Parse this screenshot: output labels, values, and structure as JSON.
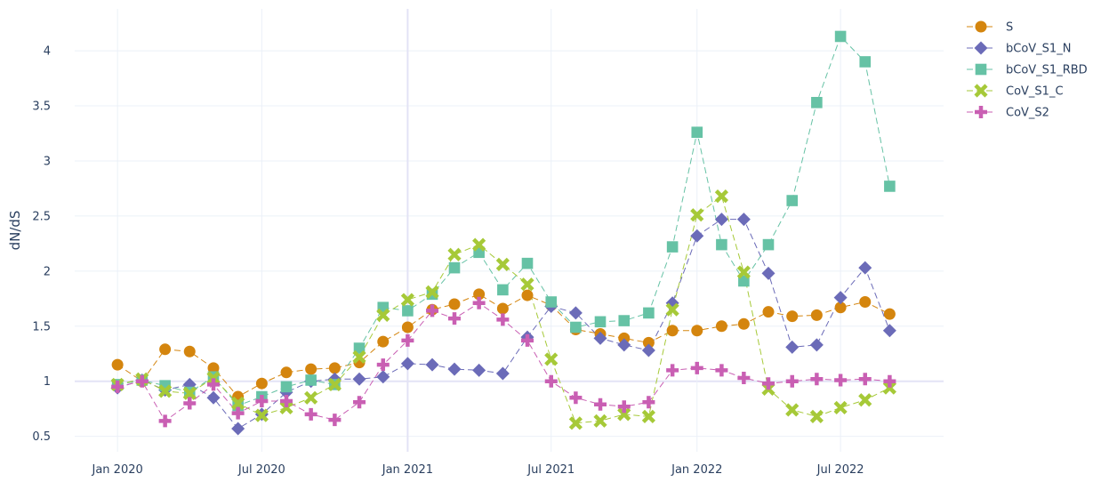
{
  "chart_data": {
    "type": "line",
    "title": "",
    "xlabel": "",
    "ylabel": "dN/dS",
    "ylim": [
      0.36,
      4.38
    ],
    "xlim": [
      "2019-11-08",
      "2022-11-08"
    ],
    "grid": true,
    "legend_position": "top-right",
    "x_ticks": [
      {
        "date": "2020-01-01",
        "label": "Jan 2020"
      },
      {
        "date": "2020-07-01",
        "label": "Jul 2020"
      },
      {
        "date": "2021-01-01",
        "label": "Jan 2021"
      },
      {
        "date": "2021-07-01",
        "label": "Jul 2021"
      },
      {
        "date": "2022-01-01",
        "label": "Jan 2022"
      },
      {
        "date": "2022-07-01",
        "label": "Jul 2022"
      }
    ],
    "y_ticks": [
      {
        "value": 0.5,
        "label": "0.5"
      },
      {
        "value": 1,
        "label": "1"
      },
      {
        "value": 1.5,
        "label": "1.5"
      },
      {
        "value": 2,
        "label": "2"
      },
      {
        "value": 2.5,
        "label": "2.5"
      },
      {
        "value": 3,
        "label": "3"
      },
      {
        "value": 3.5,
        "label": "3.5"
      },
      {
        "value": 4,
        "label": "4"
      }
    ],
    "x": [
      "2020-01-01",
      "2020-02-01",
      "2020-03-01",
      "2020-04-01",
      "2020-05-01",
      "2020-06-01",
      "2020-07-01",
      "2020-08-01",
      "2020-09-01",
      "2020-10-01",
      "2020-11-01",
      "2020-12-01",
      "2021-01-01",
      "2021-02-01",
      "2021-03-01",
      "2021-04-01",
      "2021-05-01",
      "2021-06-01",
      "2021-07-01",
      "2021-08-01",
      "2021-09-01",
      "2021-10-01",
      "2021-11-01",
      "2021-12-01",
      "2022-01-01",
      "2022-02-01",
      "2022-03-01",
      "2022-04-01",
      "2022-05-01",
      "2022-06-01",
      "2022-07-01",
      "2022-08-01",
      "2022-09-01"
    ],
    "series": [
      {
        "name": "S",
        "color": "#d4850e",
        "symbol": "circle",
        "values": [
          1.15,
          1.0,
          1.29,
          1.27,
          1.12,
          0.86,
          0.98,
          1.08,
          1.11,
          1.12,
          1.17,
          1.36,
          1.49,
          1.65,
          1.7,
          1.79,
          1.66,
          1.78,
          1.69,
          1.47,
          1.43,
          1.39,
          1.35,
          1.46,
          1.46,
          1.5,
          1.52,
          1.63,
          1.59,
          1.6,
          1.67,
          1.72,
          1.61
        ]
      },
      {
        "name": "bCoV_S1_N",
        "color": "#6b6bb8",
        "symbol": "diamond",
        "values": [
          0.94,
          1.01,
          0.92,
          0.97,
          0.85,
          0.57,
          0.7,
          0.9,
          1.0,
          1.02,
          1.02,
          1.04,
          1.16,
          1.15,
          1.11,
          1.1,
          1.07,
          1.4,
          1.68,
          1.62,
          1.39,
          1.33,
          1.28,
          1.71,
          2.32,
          2.47,
          2.47,
          1.98,
          1.31,
          1.33,
          1.76,
          2.03,
          1.46
        ]
      },
      {
        "name": "bCoV_S1_RBD",
        "color": "#66c2a5",
        "symbol": "square",
        "values": [
          0.97,
          1.01,
          0.96,
          0.9,
          1.04,
          0.78,
          0.86,
          0.95,
          1.01,
          0.97,
          1.3,
          1.67,
          1.64,
          1.79,
          2.03,
          2.17,
          1.83,
          2.07,
          1.72,
          1.49,
          1.54,
          1.55,
          1.62,
          2.22,
          3.26,
          2.24,
          1.91,
          2.24,
          2.64,
          3.53,
          4.13,
          3.9,
          2.77
        ]
      },
      {
        "name": "CoV_S1_C",
        "color": "#a6c938",
        "symbol": "x",
        "values": [
          0.97,
          1.02,
          0.91,
          0.89,
          1.03,
          0.8,
          0.69,
          0.76,
          0.85,
          0.97,
          1.22,
          1.6,
          1.74,
          1.81,
          2.15,
          2.24,
          2.06,
          1.88,
          1.2,
          0.62,
          0.64,
          0.7,
          0.68,
          1.65,
          2.51,
          2.68,
          1.99,
          0.93,
          0.74,
          0.68,
          0.76,
          0.83,
          0.94
        ]
      },
      {
        "name": "CoV_S2",
        "color": "#c95fb3",
        "symbol": "cross",
        "values": [
          0.95,
          1.0,
          0.64,
          0.8,
          0.97,
          0.71,
          0.82,
          0.82,
          0.7,
          0.65,
          0.81,
          1.15,
          1.37,
          1.64,
          1.57,
          1.71,
          1.56,
          1.37,
          1.0,
          0.85,
          0.79,
          0.77,
          0.81,
          1.1,
          1.12,
          1.1,
          1.03,
          0.98,
          1.0,
          1.02,
          1.01,
          1.02,
          1.0
        ]
      }
    ]
  }
}
